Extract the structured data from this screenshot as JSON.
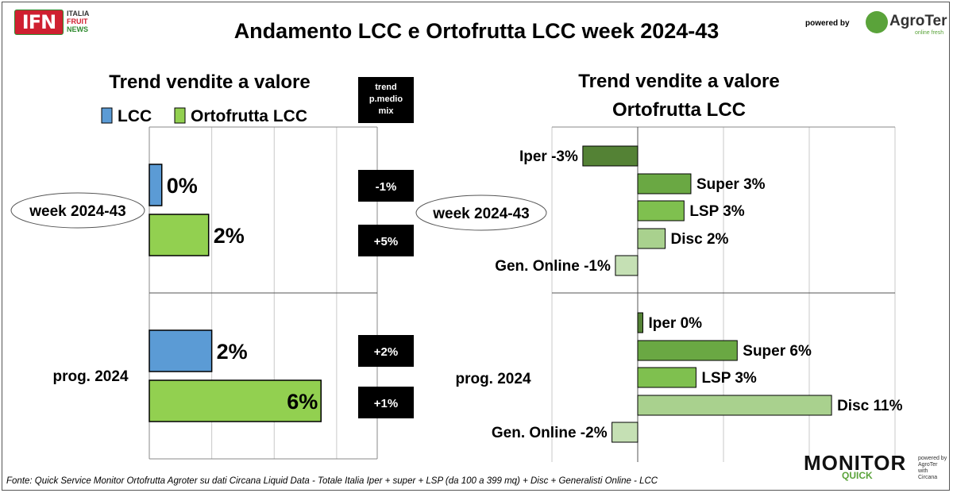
{
  "header": {
    "logo_main": "IFN",
    "logo_lines": [
      "ITALIA",
      "FRUIT",
      "NEWS"
    ],
    "title": "Andamento LCC e Ortofrutta LCC week 2024-43",
    "powered_by": "powered by",
    "partner_name": "AgroTer",
    "partner_tagline": "online fresh"
  },
  "footer": {
    "source": "Fonte: Quick Service Monitor Ortofrutta Agroter su dati Circana Liquid Data - Totale Italia Iper + super + LSP (da 100 a 399 mq) + Disc + Generalisti Online - LCC",
    "brand": "MONITOR",
    "brand_sub": "QUICK",
    "brand_side": [
      "powered by",
      "AgroTer",
      "with",
      "Circana"
    ]
  },
  "colors": {
    "lcc": "#5b9bd5",
    "ortofrutta": "#92d050",
    "iper": "#548235",
    "super": "#6aa843",
    "lsp": "#7fc04f",
    "disc": "#a9d18e",
    "online": "#c5e0b4"
  },
  "chart_data": [
    {
      "type": "bar",
      "orientation": "horizontal",
      "title": "Trend vendite a valore",
      "legend": [
        "LCC",
        "Ortofrutta LCC"
      ],
      "legend_placement": "top",
      "groups": [
        "week 2024-43",
        "prog. 2024"
      ],
      "series": [
        {
          "name": "LCC",
          "values": [
            0.4,
            2.0
          ],
          "labels": [
            "0%",
            "2%"
          ]
        },
        {
          "name": "Ortofrutta LCC",
          "values": [
            1.9,
            5.5
          ],
          "labels": [
            "2%",
            "6%"
          ]
        }
      ],
      "xlim": [
        0,
        7.3
      ],
      "grid": true,
      "side_table": {
        "header": [
          "trend",
          "p.medio",
          "mix"
        ],
        "values": [
          [
            "-1%",
            "+5%"
          ],
          [
            "+2%",
            "+1%"
          ]
        ]
      }
    },
    {
      "type": "bar",
      "orientation": "horizontal",
      "title": [
        "Trend vendite a valore",
        "Ortofrutta LCC"
      ],
      "groups": [
        {
          "name": "week 2024-43",
          "bars": [
            {
              "label": "Iper -3%",
              "value": -3.2
            },
            {
              "label": "Super 3%",
              "value": 3.1
            },
            {
              "label": "LSP 3%",
              "value": 2.7
            },
            {
              "label": "Disc 2%",
              "value": 1.6
            },
            {
              "label": "Gen. Online -1%",
              "value": -1.3
            }
          ]
        },
        {
          "name": "prog. 2024",
          "bars": [
            {
              "label": "Iper 0%",
              "value": 0.3
            },
            {
              "label": "Super 6%",
              "value": 5.8
            },
            {
              "label": "LSP 3%",
              "value": 3.4
            },
            {
              "label": "Disc 11%",
              "value": 11.3
            },
            {
              "label": "Gen. Online -2%",
              "value": -1.5
            }
          ]
        }
      ],
      "xlim": [
        -5,
        15
      ],
      "grid": true
    }
  ]
}
